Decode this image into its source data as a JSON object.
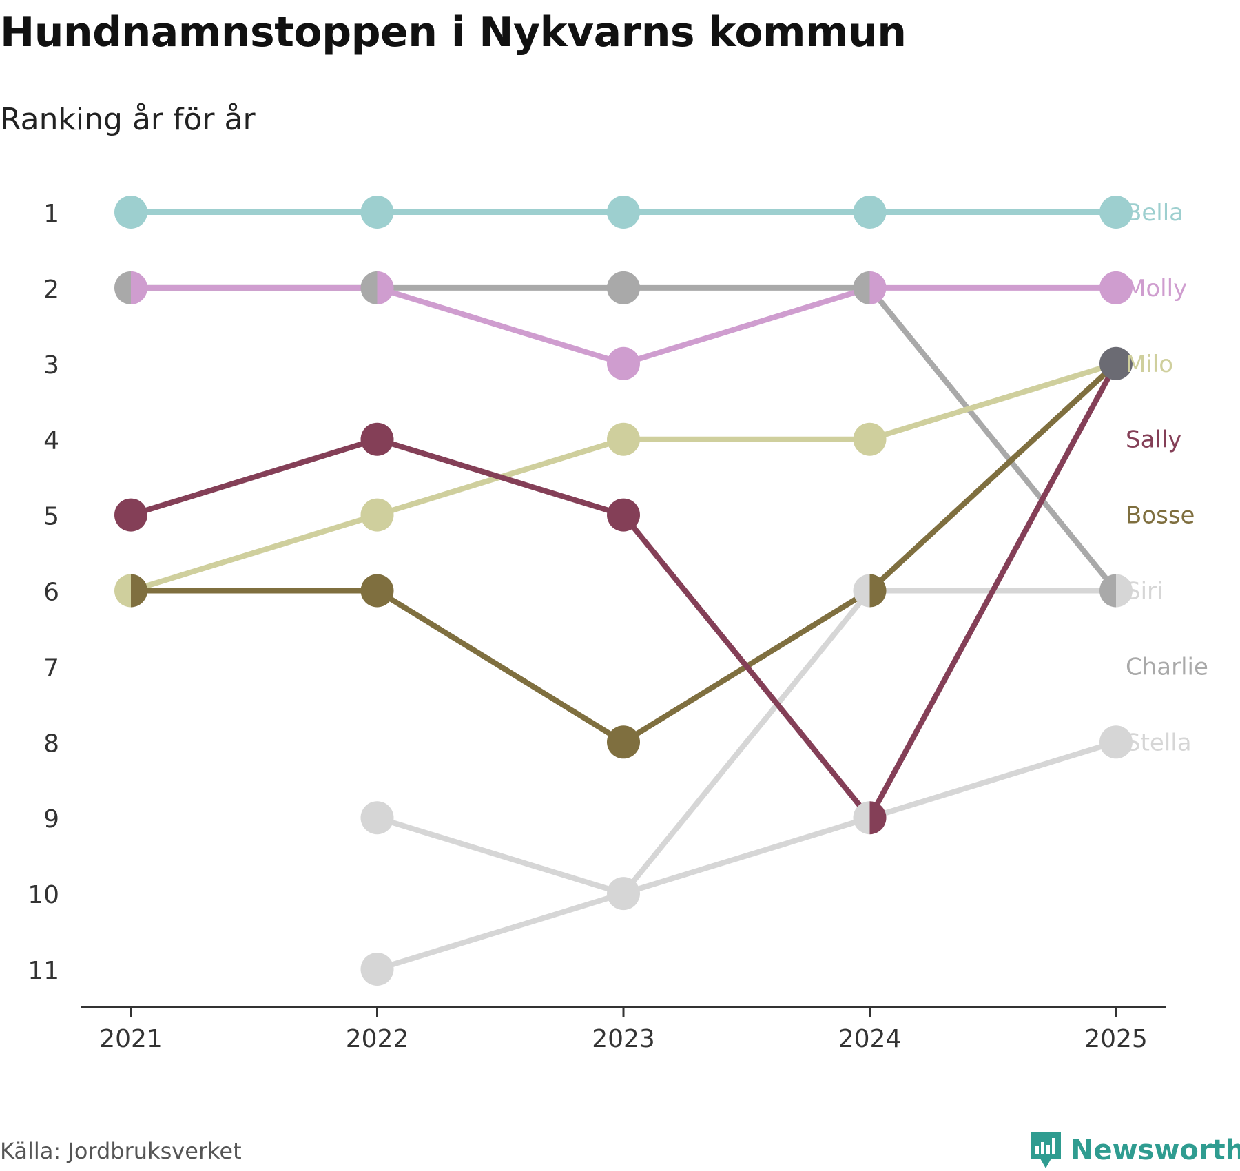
{
  "chart_data": {
    "type": "line",
    "title": "Hundnamnstoppen i Nykvarns kommun",
    "subtitle": "Ranking år för år",
    "x": [
      "2021",
      "2022",
      "2023",
      "2024",
      "2025"
    ],
    "ylim": [
      1,
      11
    ],
    "y_ticks": [
      "1",
      "2",
      "3",
      "4",
      "5",
      "6",
      "7",
      "8",
      "9",
      "10",
      "11"
    ],
    "y_inverted": true,
    "series": [
      {
        "name": "Charlie",
        "color": "#a9a9a9",
        "values": [
          2,
          2,
          2,
          2,
          6
        ]
      },
      {
        "name": "Siri",
        "color": "#d6d6d6",
        "values": [
          null,
          11,
          10,
          6,
          6
        ]
      },
      {
        "name": "Stella",
        "color": "#d6d6d6",
        "values": [
          null,
          9,
          10,
          9,
          8
        ]
      },
      {
        "name": "Bella",
        "color": "#9dcfcf",
        "values": [
          1,
          1,
          1,
          1,
          1
        ]
      },
      {
        "name": "Molly",
        "color": "#cf9dcf",
        "values": [
          2,
          2,
          3,
          2,
          2
        ]
      },
      {
        "name": "Milo",
        "color": "#cfcf9d",
        "values": [
          6,
          5,
          4,
          4,
          3
        ]
      },
      {
        "name": "Bosse",
        "color": "#7f6f3f",
        "values": [
          6,
          6,
          8,
          6,
          3
        ]
      },
      {
        "name": "Sally",
        "color": "#843f57",
        "values": [
          5,
          4,
          5,
          9,
          3
        ]
      }
    ],
    "label_order": [
      "Bella",
      "Molly",
      "Milo",
      "Sally",
      "Bosse",
      "Siri",
      "Charlie",
      "Stella"
    ],
    "tie_marker_color": "#6b6b73"
  },
  "footer": {
    "source": "Källa: Jordbruksverket",
    "brand": "Newsworthy"
  }
}
